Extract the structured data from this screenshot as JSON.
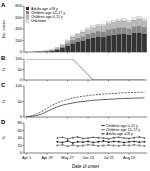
{
  "chart_data": [
    {
      "type": "bar",
      "stacked": true,
      "title": "A",
      "y_label": "No. cases",
      "legend": "upper left",
      "tick_labels": "y",
      "categories": [
        "Apr 1",
        null,
        null,
        null,
        "Apr 29",
        null,
        null,
        null,
        "May 27",
        null,
        null,
        null,
        "Jun 24",
        null,
        null,
        null,
        "Jul 22",
        null,
        null,
        null,
        "Aug 19",
        null,
        null,
        null
      ],
      "ylim": [
        0,
        800
      ],
      "yticks": [
        0,
        200,
        400,
        600,
        800
      ],
      "series": [
        {
          "name": "Adults age ≥18 y",
          "color": "#333333",
          "values": [
            0,
            0,
            2,
            5,
            10,
            20,
            40,
            70,
            110,
            150,
            180,
            200,
            230,
            250,
            270,
            260,
            290,
            300,
            310,
            320,
            300,
            330,
            340,
            320
          ]
        },
        {
          "name": "Children age 12–17 y",
          "color": "#888888",
          "values": [
            0,
            0,
            1,
            2,
            4,
            8,
            15,
            25,
            40,
            55,
            60,
            70,
            80,
            85,
            90,
            95,
            100,
            105,
            110,
            100,
            105,
            110,
            115,
            110
          ]
        },
        {
          "name": "Children age 0–11 y",
          "color": "#bbbbbb",
          "values": [
            0,
            0,
            1,
            2,
            5,
            10,
            20,
            30,
            45,
            55,
            65,
            75,
            80,
            90,
            95,
            100,
            105,
            110,
            115,
            120,
            110,
            115,
            120,
            115
          ]
        },
        {
          "name": "Unknown",
          "color": "#e8e8e8",
          "values": [
            0,
            0,
            0,
            1,
            2,
            4,
            6,
            10,
            15,
            20,
            22,
            25,
            28,
            30,
            30,
            32,
            35,
            35,
            38,
            40,
            38,
            40,
            42,
            40
          ]
        }
      ]
    },
    {
      "type": "line",
      "title": "B",
      "y_label": "%",
      "tick_labels": "y",
      "categories": [
        "Apr 1",
        null,
        null,
        null,
        "Apr 29",
        null,
        null,
        null,
        "May 27",
        null,
        null,
        null,
        "Jun 24",
        null,
        null,
        null,
        "Jul 22",
        null,
        null,
        null,
        "Aug 19",
        null,
        null,
        null
      ],
      "ylim": [
        0,
        100
      ],
      "yticks": [
        0,
        50,
        100
      ],
      "series": [
        {
          "color": "#555555",
          "values": [
            100,
            100,
            100,
            100,
            100,
            100,
            100,
            100,
            100,
            100,
            75,
            50,
            25,
            0,
            0,
            0,
            0,
            0,
            0,
            0,
            0,
            0,
            0,
            0
          ]
        }
      ]
    },
    {
      "type": "line",
      "title": "C",
      "y_label": "%",
      "tick_labels": "y",
      "categories": [
        "Apr 1",
        null,
        null,
        null,
        "Apr 29",
        null,
        null,
        null,
        "May 27",
        null,
        null,
        null,
        "Jun 24",
        null,
        null,
        null,
        "Jul 22",
        null,
        null,
        null,
        "Aug 19",
        null,
        null,
        null
      ],
      "ylim": [
        0,
        100
      ],
      "yticks": [
        0,
        50,
        100
      ],
      "series": [
        {
          "color": "#222222",
          "line_style": "solid",
          "values": [
            0,
            2,
            5,
            10,
            18,
            26,
            33,
            38,
            42,
            45,
            48,
            50,
            52,
            54,
            55,
            56,
            57,
            58,
            59,
            60,
            60,
            61,
            61,
            62
          ]
        },
        {
          "color": "#222222",
          "line_style": "dashed",
          "values": [
            0,
            4,
            10,
            18,
            28,
            38,
            46,
            52,
            57,
            61,
            64,
            67,
            69,
            71,
            73,
            74,
            75,
            76,
            77,
            78,
            79,
            79,
            80,
            80
          ]
        }
      ]
    },
    {
      "type": "line",
      "title": "D",
      "y_label": "%",
      "x_label": "Date of onset",
      "legend": "upper right",
      "categories": [
        "Apr 1",
        null,
        null,
        null,
        "Apr 29",
        null,
        null,
        null,
        "May 27",
        null,
        null,
        null,
        "Jun 24",
        null,
        null,
        null,
        "Jul 22",
        null,
        null,
        null,
        "Aug 19",
        null,
        null,
        null
      ],
      "ylim": [
        0,
        80
      ],
      "yticks": [
        0,
        20,
        40,
        60,
        80
      ],
      "series": [
        {
          "name": "Children age 0–11 y",
          "color": "#222222",
          "marker": "circle",
          "values": [
            null,
            null,
            null,
            null,
            null,
            null,
            30,
            28,
            32,
            27,
            30,
            29,
            31,
            28,
            30,
            32,
            29,
            31,
            30,
            28,
            30,
            31,
            29,
            30
          ]
        },
        {
          "name": "Children age 12–17 y",
          "color": "#777777",
          "marker": "square",
          "values": [
            null,
            null,
            null,
            null,
            null,
            null,
            20,
            22,
            18,
            21,
            19,
            20,
            22,
            21,
            19,
            20,
            21,
            20,
            19,
            21,
            20,
            22,
            20,
            19
          ]
        },
        {
          "name": "Adults age ≥18 y",
          "color": "#444444",
          "marker": "triangle",
          "values": [
            null,
            null,
            null,
            null,
            null,
            null,
            40,
            42,
            38,
            41,
            43,
            39,
            40,
            42,
            41,
            40,
            38,
            41,
            42,
            40,
            39,
            41,
            43,
            40
          ]
        }
      ]
    }
  ]
}
